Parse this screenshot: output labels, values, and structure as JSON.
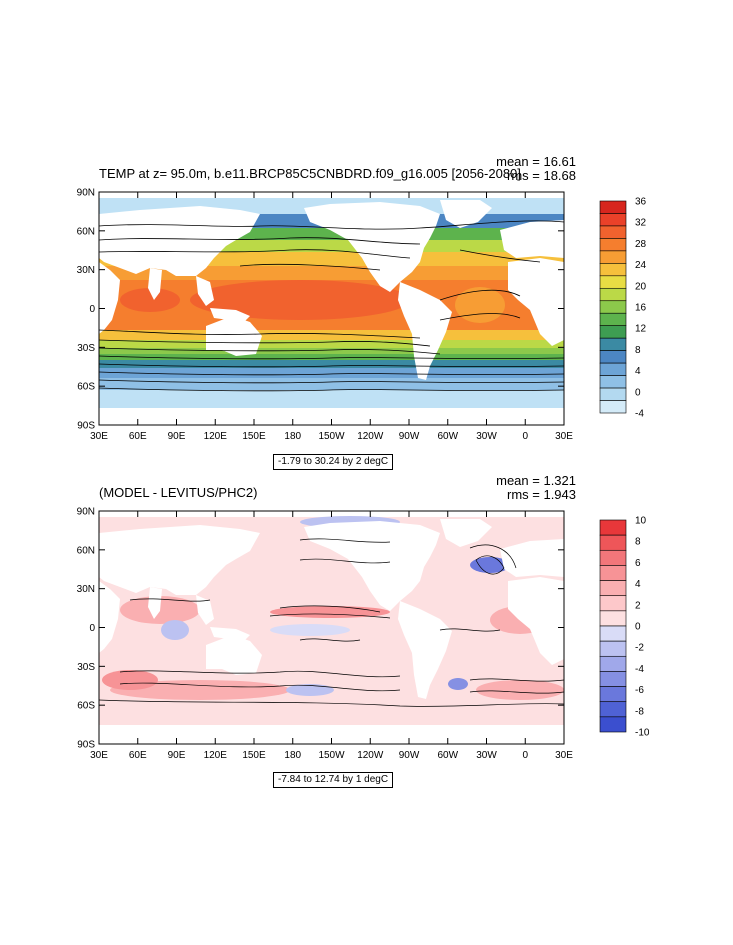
{
  "panels": [
    {
      "id": "top",
      "title": "TEMP at z=  95.0m, b.e11.BRCP85C5CNBDRD.f09_g16.005 [2056-2080]",
      "mean": "mean = 16.61",
      "rms": "rms = 18.68",
      "contour_note": "-1.79 to 30.24 by 2 degC",
      "colorbar": {
        "labels": [
          "36",
          "32",
          "28",
          "24",
          "20",
          "16",
          "12",
          "8",
          "4",
          "0",
          "-4"
        ],
        "colors": [
          "#d7261e",
          "#ea4129",
          "#f1622e",
          "#f57e2e",
          "#f79d34",
          "#f6c03c",
          "#e8dd44",
          "#bbd947",
          "#8cc94b",
          "#5db34d",
          "#3e9d52",
          "#3b8aa3",
          "#4c86c3",
          "#6da4d6",
          "#8fc0e6",
          "#b3d9f0",
          "#d4ebf8"
        ]
      }
    },
    {
      "id": "bottom",
      "title": "(MODEL - LEVITUS/PHC2)",
      "mean": "mean = 1.321",
      "rms": "rms = 1.943",
      "contour_note": "-7.84 to 12.74 by 1 degC",
      "colorbar": {
        "labels": [
          "10",
          "8",
          "6",
          "4",
          "2",
          "0",
          "-2",
          "-4",
          "-6",
          "-8",
          "-10"
        ],
        "colors": [
          "#e8373a",
          "#ee5659",
          "#f2767a",
          "#f79396",
          "#faafb1",
          "#fdc8ca",
          "#fde0e1",
          "#d9dcf7",
          "#bcc2f1",
          "#a0a8ea",
          "#8590e3",
          "#6a78dc",
          "#4f62d5",
          "#3b4fcf"
        ]
      }
    }
  ],
  "axes": {
    "lon_labels": [
      "30E",
      "60E",
      "90E",
      "120E",
      "150E",
      "180",
      "150W",
      "120W",
      "90W",
      "60W",
      "30W",
      "0",
      "30E"
    ],
    "lat_labels": [
      "90N",
      "60N",
      "30N",
      "0",
      "30S",
      "60S",
      "90S"
    ]
  },
  "style": {
    "land": "#ffffff",
    "contour": "#000000",
    "sea_ice_top": "#bfe1f5",
    "diff_base": "#fde0e1"
  }
}
